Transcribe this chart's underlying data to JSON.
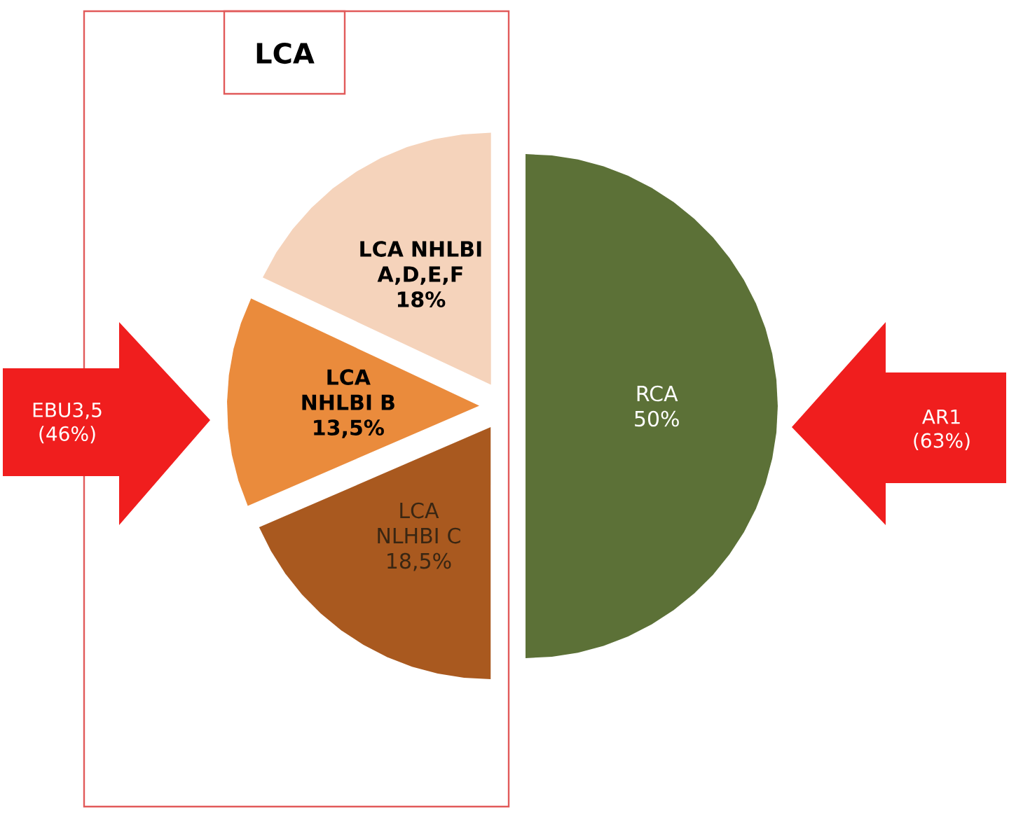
{
  "chart_data": {
    "type": "pie",
    "categories": [
      "LCA NHLBI A,D,E,F",
      "LCA NHLBI B",
      "LCA NLHBI C",
      "RCA"
    ],
    "values": [
      18,
      13.5,
      18.5,
      50
    ],
    "value_labels": [
      "18%",
      "13,5%",
      "18,5%",
      "50%"
    ],
    "colors": [
      "#f5d3bb",
      "#ea8b3c",
      "#a9591f",
      "#5c7137"
    ],
    "annotations": [
      "LCA",
      "EBU3,5 (46%)",
      "AR1 (63%)"
    ]
  }
}
